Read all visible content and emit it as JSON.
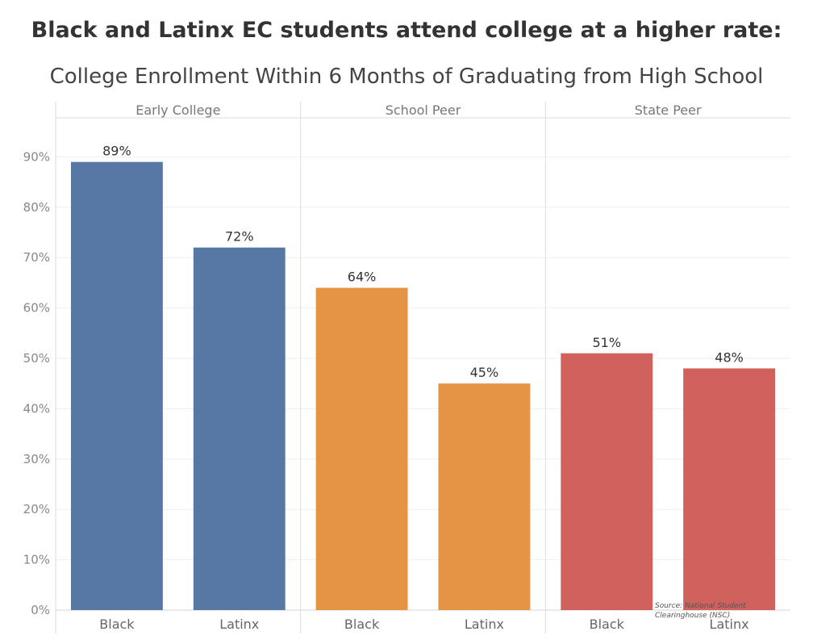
{
  "chart_data": {
    "type": "bar",
    "title": "Black and Latinx EC students attend college at a higher rate:",
    "subtitle": "College Enrollment Within 6 Months of Graduating from High School",
    "ylabel": "",
    "xlabel": "",
    "ylim": [
      0,
      95
    ],
    "yticks": [
      "0%",
      "10%",
      "20%",
      "30%",
      "40%",
      "50%",
      "60%",
      "70%",
      "80%",
      "90%"
    ],
    "ytick_values": [
      0,
      10,
      20,
      30,
      40,
      50,
      60,
      70,
      80,
      90
    ],
    "panels": [
      {
        "name": "Early College",
        "color": "#5778a4",
        "categories": [
          "Black",
          "Latinx"
        ],
        "values": [
          89,
          72
        ],
        "labels": [
          "89%",
          "72%"
        ]
      },
      {
        "name": "School Peer",
        "color": "#e49444",
        "categories": [
          "Black",
          "Latinx"
        ],
        "values": [
          64,
          45
        ],
        "labels": [
          "64%",
          "45%"
        ]
      },
      {
        "name": "State Peer",
        "color": "#d1615d",
        "categories": [
          "Black",
          "Latinx"
        ],
        "values": [
          51,
          48
        ],
        "labels": [
          "51%",
          "48%"
        ]
      }
    ],
    "source_lines": [
      "Source: National Student",
      "Clearinghouse (NSC)"
    ]
  }
}
